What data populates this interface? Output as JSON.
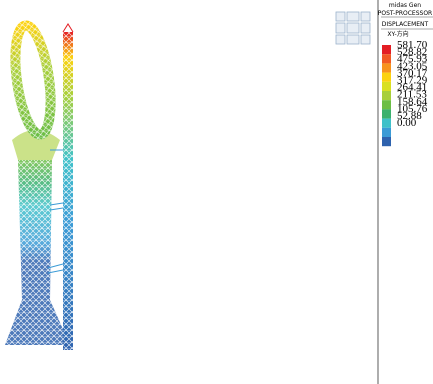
{
  "header": {
    "product": "midas Gen",
    "module": "POST-PROCESSOR",
    "result": "DISPLACEMENT",
    "component": "XY-方向"
  },
  "legend": {
    "labels": [
      "581.70",
      "528.82",
      "475.93",
      "423.05",
      "370.17",
      "317.29",
      "264.41",
      "211.53",
      "158.64",
      "105.76",
      "52.88",
      "0.00"
    ],
    "colors": [
      "#e31e24",
      "#f15a24",
      "#f7931e",
      "#fcd20f",
      "#d9e021",
      "#a8cf3a",
      "#6cbe45",
      "#3bb16e",
      "#3fc1c9",
      "#3b9bd6",
      "#2e62ae"
    ]
  }
}
